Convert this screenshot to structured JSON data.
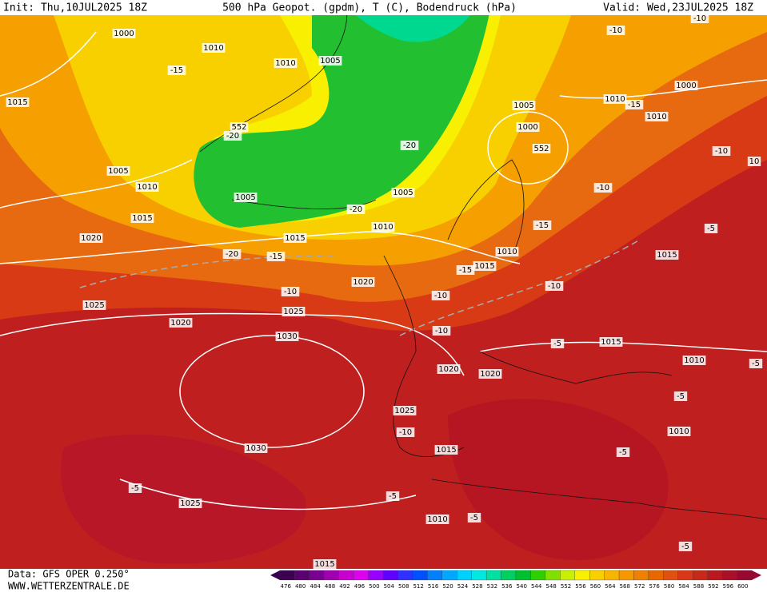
{
  "header": {
    "init": "Init: Thu,10JUL2025 18Z",
    "title": "500 hPa Geopot. (gpdm), T (C), Bodendruck (hPa)",
    "valid": "Valid: Wed,23JUL2025 18Z"
  },
  "map": {
    "labels": [
      "1000",
      "1010",
      "1010",
      "1005",
      "1015",
      "1005",
      "1010",
      "1015",
      "1020",
      "1005",
      "1005",
      "1010",
      "1015",
      "1020",
      "1025",
      "1020",
      "1025",
      "1030",
      "1020",
      "1020",
      "1025",
      "1015",
      "1030",
      "1025",
      "1010",
      "1015",
      "1005",
      "1000",
      "1010",
      "1015",
      "1015",
      "1015",
      "1010",
      "1010",
      "1000",
      "1010",
      "1010",
      "-15",
      "-20",
      "552",
      "-20",
      "-15",
      "-10",
      "-20",
      "-15",
      "-10",
      "-10",
      "-15",
      "-10",
      "-10",
      "-5",
      "-5",
      "-5",
      "-5",
      "-5",
      "-10",
      "-5",
      "-5",
      "-5",
      "-5",
      "-10",
      "-15",
      "-10",
      "-10",
      "552",
      "-20",
      "10"
    ]
  },
  "colorbar": {
    "ticks": [
      476,
      480,
      484,
      488,
      492,
      496,
      500,
      504,
      508,
      512,
      516,
      520,
      524,
      528,
      532,
      536,
      540,
      544,
      548,
      552,
      556,
      560,
      564,
      568,
      572,
      576,
      580,
      584,
      588,
      592,
      596,
      600
    ],
    "colors": [
      "#3c0050",
      "#5a0070",
      "#7a0090",
      "#a000b0",
      "#c800d0",
      "#e000f0",
      "#9800ff",
      "#6000ff",
      "#3030ff",
      "#0050ff",
      "#0080ff",
      "#00a8ff",
      "#00d0ff",
      "#00e8e0",
      "#00e0a0",
      "#00d060",
      "#00c030",
      "#30d000",
      "#80e000",
      "#c8f000",
      "#f8f000",
      "#f8d000",
      "#f8b400",
      "#f89800",
      "#f08000",
      "#e86800",
      "#e05010",
      "#d83818",
      "#c82818",
      "#b81820",
      "#a81028",
      "#980830"
    ]
  },
  "footer": {
    "data": "Data: GFS OPER 0.250°",
    "site": "WWW.WETTERZENTRALE.DE"
  }
}
